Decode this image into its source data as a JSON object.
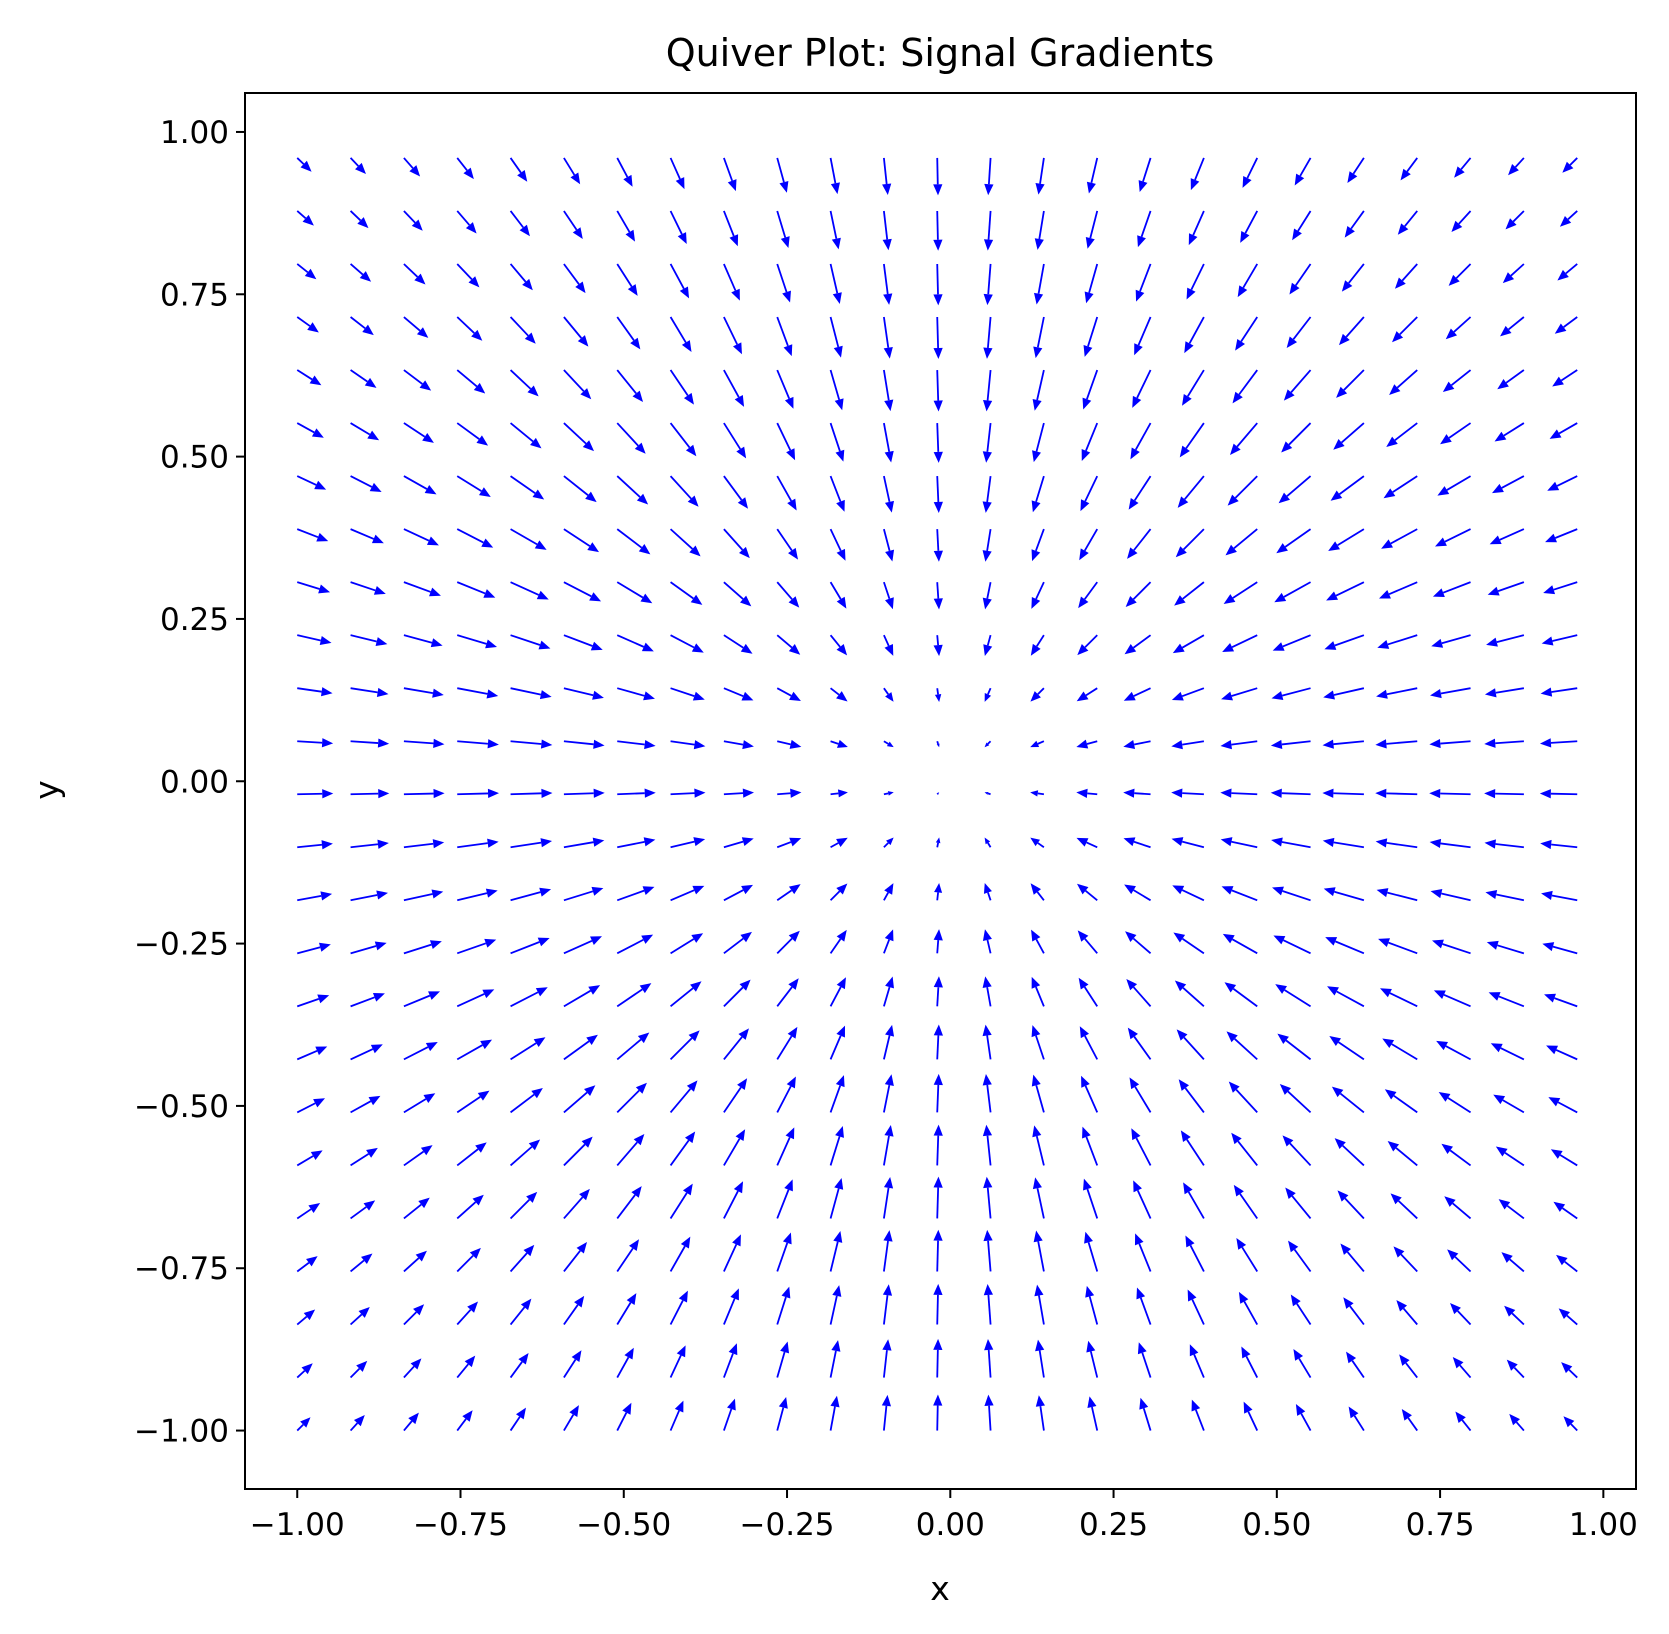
{
  "chart_data": {
    "type": "quiver",
    "title": "Quiver Plot: Signal Gradients",
    "xlabel": "x",
    "ylabel": "y",
    "xlim": [
      -1.08,
      1.05
    ],
    "ylim": [
      -1.09,
      1.06
    ],
    "xticks": [
      -1.0,
      -0.75,
      -0.5,
      -0.25,
      0.0,
      0.25,
      0.5,
      0.75,
      1.0
    ],
    "xtick_labels": [
      "−1.00",
      "−0.75",
      "−0.50",
      "−0.25",
      "0.00",
      "0.25",
      "0.50",
      "0.75",
      "1.00"
    ],
    "yticks": [
      1.0,
      0.75,
      0.5,
      0.25,
      0.0,
      -0.25,
      -0.5,
      -0.75,
      -1.0
    ],
    "ytick_labels": [
      "1.00",
      "0.75",
      "0.50",
      "0.25",
      "0.00",
      "−0.25",
      "−0.50",
      "−0.75",
      "−1.00"
    ],
    "grid": false,
    "arrow_color": "#0000ff",
    "grid_points": {
      "x_start": -1.0,
      "x_end": 0.96,
      "x_count": 25,
      "y_start": -1.0,
      "y_end": 0.96,
      "y_count": 25
    },
    "vector_field": "u = -2·x·exp(-(x²+y²)), v = -2·y·exp(-(x²+y²))"
  }
}
